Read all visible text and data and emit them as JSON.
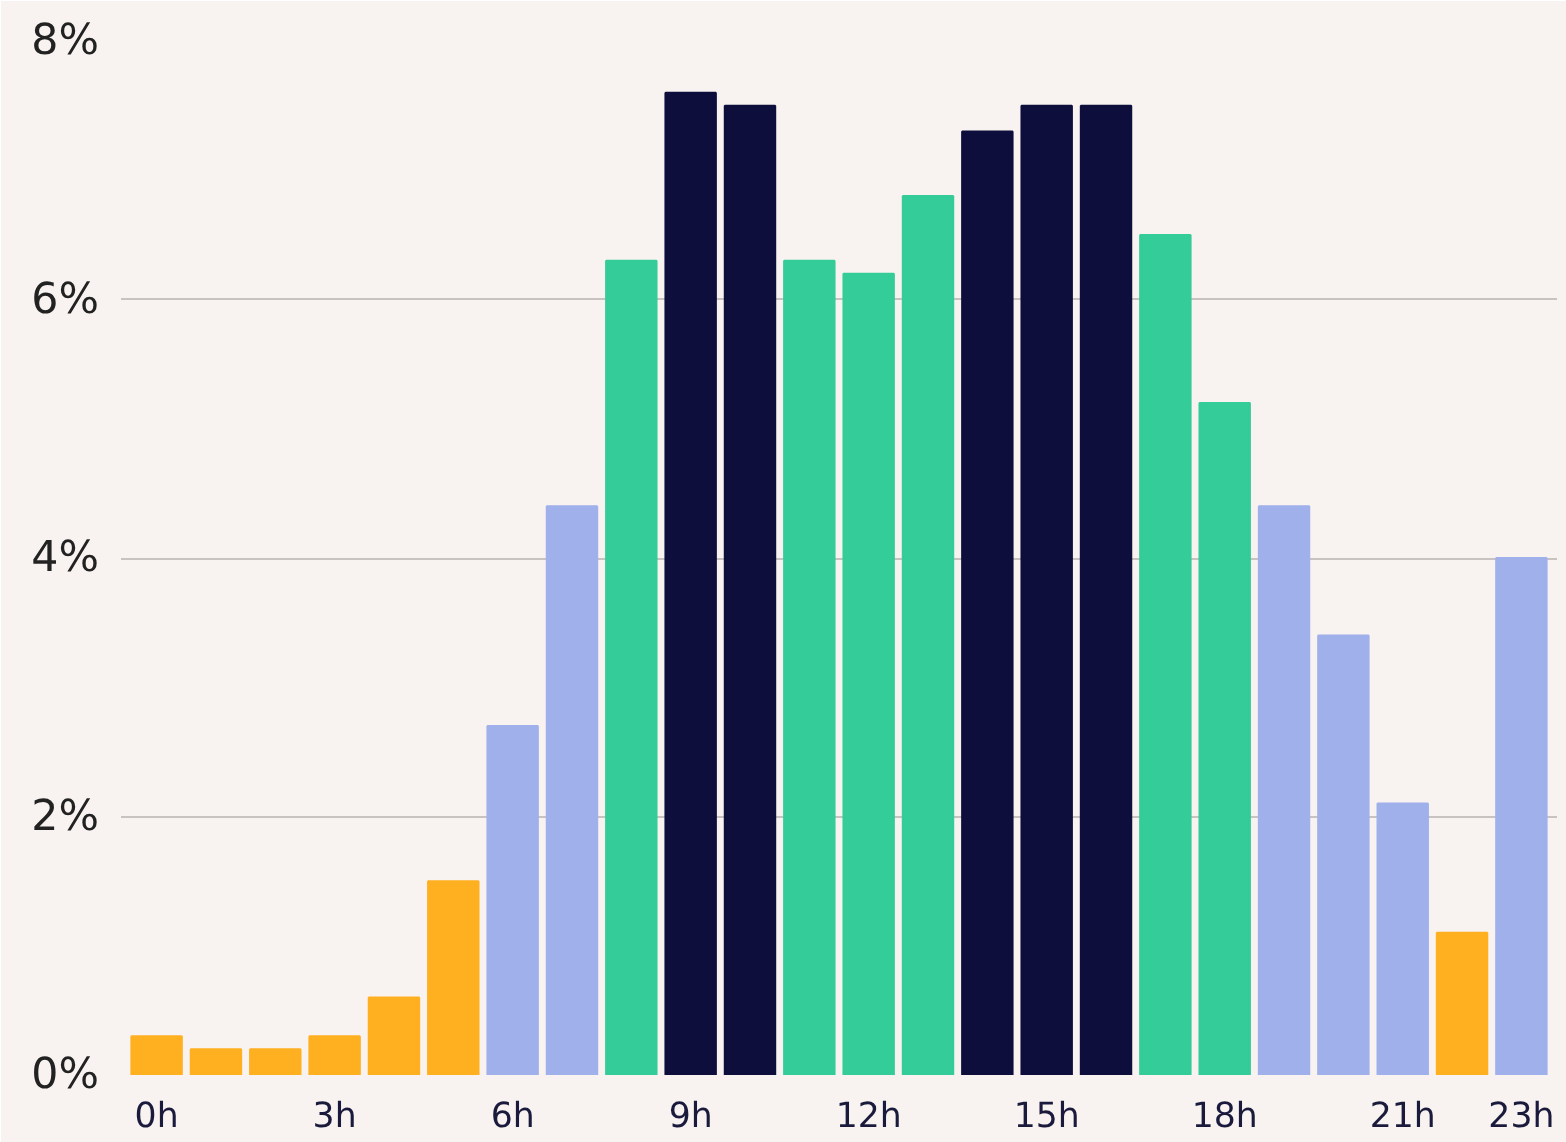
{
  "chart_data": {
    "type": "bar",
    "categories": [
      "0h",
      null,
      null,
      "3h",
      null,
      null,
      "6h",
      null,
      null,
      "9h",
      null,
      null,
      "12h",
      null,
      null,
      "15h",
      null,
      null,
      "18h",
      null,
      null,
      "21h",
      null,
      "23h"
    ],
    "values": [
      0.3,
      0.2,
      0.2,
      0.3,
      0.6,
      1.5,
      2.7,
      4.4,
      6.3,
      7.6,
      7.5,
      6.3,
      6.2,
      6.8,
      7.3,
      7.5,
      7.5,
      6.5,
      5.2,
      4.4,
      3.4,
      2.1,
      1.1,
      4.0
    ],
    "colors": [
      "#ffb020",
      "#ffb020",
      "#ffb020",
      "#ffb020",
      "#ffb020",
      "#ffb020",
      "#a0b0ea",
      "#a0b0ea",
      "#34cc98",
      "#0e0e3c",
      "#0e0e3c",
      "#34cc98",
      "#34cc98",
      "#34cc98",
      "#0e0e3c",
      "#0e0e3c",
      "#0e0e3c",
      "#34cc98",
      "#34cc98",
      "#a0b0ea",
      "#a0b0ea",
      "#a0b0ea",
      "#ffb020",
      "#a0b0ea"
    ],
    "ylim": [
      0,
      8
    ],
    "yticks": [
      {
        "value": 0,
        "label": "0%"
      },
      {
        "value": 2,
        "label": "2%"
      },
      {
        "value": 4,
        "label": "4%"
      },
      {
        "value": 6,
        "label": "6%"
      },
      {
        "value": 8,
        "label": "8%"
      }
    ],
    "grid": "y"
  }
}
